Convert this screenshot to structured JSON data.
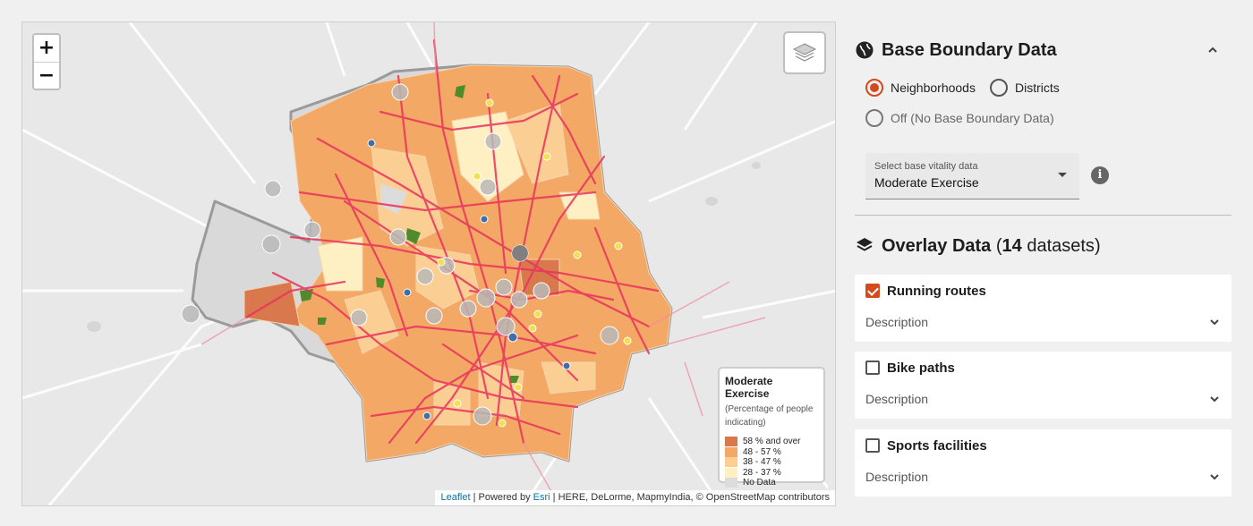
{
  "map": {
    "zoom_in_label": "+",
    "zoom_out_label": "−",
    "layers_icon": "layers-icon",
    "legend": {
      "title": "Moderate Exercise",
      "subtitle": "(Percentage of people indicating)",
      "items": [
        {
          "label": "58 % and over",
          "color": "#d9784d"
        },
        {
          "label": "48 - 57 %",
          "color": "#f4a866"
        },
        {
          "label": "38 - 47 %",
          "color": "#fbcf94"
        },
        {
          "label": "28 - 37 %",
          "color": "#fff0c4"
        },
        {
          "label": "No Data",
          "color": "#dcdcdc"
        }
      ]
    },
    "attribution": {
      "leaflet": "Leaflet",
      "powered_by": "Powered by",
      "esri": "Esri",
      "rest": "HERE, DeLorme, MapmyIndia, © OpenStreetMap contributors"
    },
    "colors": {
      "routes": "#e8325c",
      "parks": "#4f8a2b",
      "point_grey": "#b9b9b9",
      "point_blue": "#3f6fa6",
      "point_yellow": "#f4e04d"
    }
  },
  "base_boundary": {
    "title": "Base Boundary Data",
    "icon": "globe-icon",
    "collapse_icon": "chevron-up-icon",
    "options": [
      {
        "label": "Neighborhoods",
        "selected": true
      },
      {
        "label": "Districts",
        "selected": false
      },
      {
        "label": "Off (No Base Boundary Data)",
        "selected": false
      }
    ],
    "select": {
      "label": "Select base vitality data",
      "value": "Moderate Exercise"
    },
    "info_icon": "info-icon"
  },
  "overlay": {
    "title": "Overlay Data",
    "count": "14",
    "suffix": "datasets",
    "icon": "layers-icon",
    "datasets": [
      {
        "label": "Running routes",
        "checked": true,
        "description": "Description"
      },
      {
        "label": "Bike paths",
        "checked": false,
        "description": "Description"
      },
      {
        "label": "Sports facilities",
        "checked": false,
        "description": "Description"
      }
    ]
  },
  "accent_color": "#d34a1c"
}
